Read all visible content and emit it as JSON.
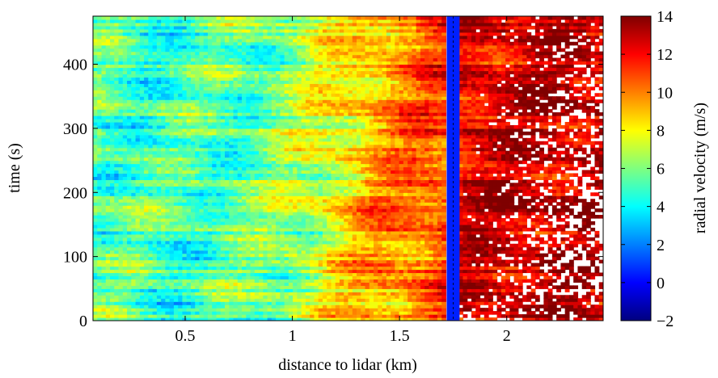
{
  "chart_data": {
    "type": "heatmap",
    "title": "",
    "xlabel": "distance to lidar (km)",
    "ylabel": "time (s)",
    "colorbar_label": "radial velocity (m/s)",
    "xlim": [
      0.07,
      2.45
    ],
    "ylim": [
      0,
      475
    ],
    "x_ticks": [
      0.5,
      1,
      1.5,
      2
    ],
    "x_tick_labels": [
      "0.5",
      "1",
      "1.5",
      "2"
    ],
    "y_ticks": [
      0,
      100,
      200,
      300,
      400
    ],
    "y_tick_labels": [
      "0",
      "100",
      "200",
      "300",
      "400"
    ],
    "colorbar_range": [
      -2,
      14
    ],
    "colorbar_ticks": [
      -2,
      0,
      2,
      4,
      6,
      8,
      10,
      12,
      14
    ],
    "colorbar_tick_labels": [
      "−2",
      "0",
      "2",
      "4",
      "6",
      "8",
      "10",
      "12",
      "14"
    ],
    "colormap": "jet",
    "colormap_colors": [
      "#00007f",
      "#0000ff",
      "#007fff",
      "#00ffff",
      "#7fff7f",
      "#ffff00",
      "#ff7f00",
      "#ff0000",
      "#7f0000"
    ],
    "blocked_band_km": [
      1.72,
      1.78
    ],
    "blocked_band_velocity": 0.5,
    "mean_velocity_profile": {
      "distance_km": [
        0.07,
        0.4,
        0.8,
        1.0,
        1.2,
        1.4,
        1.6,
        1.72,
        1.8,
        2.0,
        2.2,
        2.45
      ],
      "velocity_ms": [
        5.5,
        5.0,
        5.5,
        6.5,
        8.0,
        9.5,
        10.5,
        11.0,
        12.5,
        12.8,
        13.0,
        13.0
      ]
    },
    "grid": false,
    "colorbar_position": "right"
  }
}
